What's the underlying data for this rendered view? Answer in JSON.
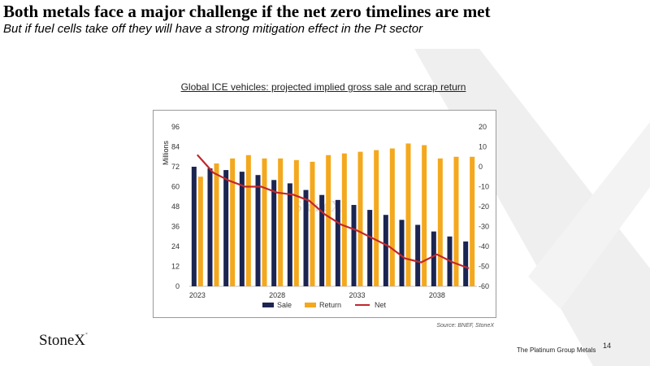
{
  "slide": {
    "title": "Both metals face a major challenge if the net zero timelines are met",
    "subtitle": "But if fuel cells take off they will have a strong mitigation effect in the Pt sector",
    "chart_title": "Global ICE vehicles:  projected implied gross sale and scrap return",
    "source": "Source: BNEF, StoneX",
    "logo": "StoneX",
    "footer": "The Platinum Group Metals",
    "page_number": "14",
    "watermark": "StoneX"
  },
  "chart_data": {
    "type": "bar",
    "categories": [
      "2023",
      "2024",
      "2025",
      "2026",
      "2027",
      "2028",
      "2029",
      "2030",
      "2031",
      "2032",
      "2033",
      "2034",
      "2035",
      "2036",
      "2037",
      "2038",
      "2039",
      "2040"
    ],
    "x_tick_labels": [
      "2023",
      "2028",
      "2033",
      "2038"
    ],
    "ylabel": "Millions",
    "ylim": [
      0,
      96
    ],
    "y_ticks": [
      0,
      12,
      24,
      36,
      48,
      60,
      72,
      84,
      96
    ],
    "y2lim": [
      -60,
      20
    ],
    "y2_ticks": [
      20,
      10,
      0,
      -10,
      -20,
      -30,
      -40,
      -50,
      -60
    ],
    "legend_position": "bottom",
    "series": [
      {
        "name": "Sale",
        "type": "bar",
        "axis": "left",
        "color": "#1b2550",
        "values": [
          72,
          71,
          70,
          69,
          67,
          64,
          62,
          58,
          55,
          52,
          49,
          46,
          43,
          40,
          37,
          33,
          30,
          27
        ]
      },
      {
        "name": "Return",
        "type": "bar",
        "axis": "left",
        "color": "#f4a81d",
        "values": [
          66,
          74,
          77,
          79,
          77,
          77,
          76,
          75,
          79,
          80,
          81,
          82,
          83,
          86,
          85,
          77,
          78,
          78
        ]
      },
      {
        "name": "Net",
        "type": "line",
        "axis": "right",
        "color": "#c0282d",
        "values": [
          6,
          -3,
          -7,
          -10,
          -10,
          -13,
          -14,
          -17,
          -24,
          -29,
          -32,
          -36,
          -40,
          -46,
          -48,
          -44,
          -48,
          -51
        ]
      }
    ]
  }
}
